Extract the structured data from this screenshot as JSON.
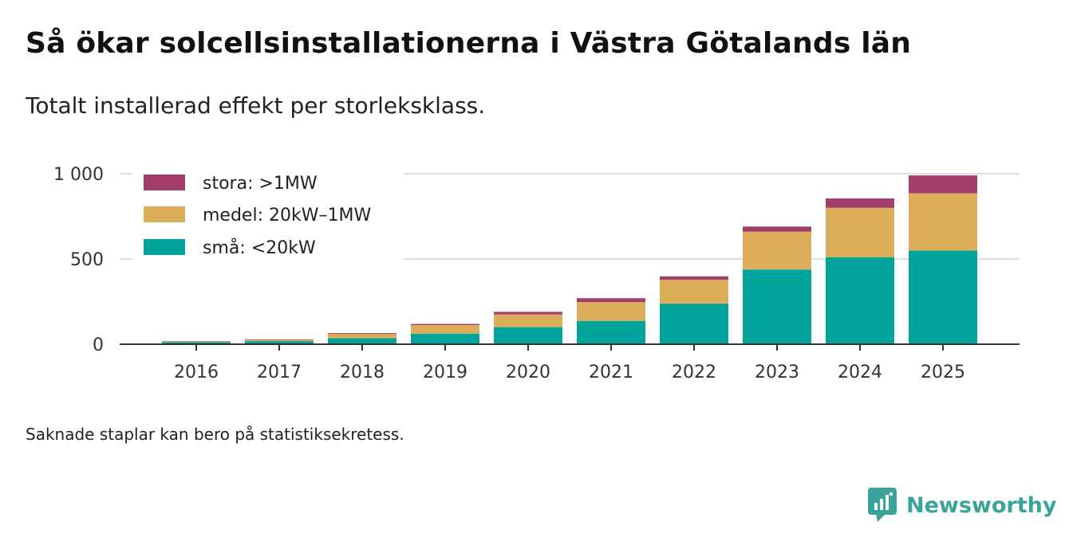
{
  "title": "Så ökar solcellsinstallationerna i Västra Götalands län",
  "subtitle": "Totalt installerad effekt per storleksklass.",
  "note": "Saknade staplar kan bero på statistiksekretess.",
  "brand": {
    "name": "Newsworthy",
    "color": "#3aa39a",
    "icon": "newsworthy-logo-icon"
  },
  "chart_data": {
    "type": "bar",
    "stacked": true,
    "categories": [
      "2016",
      "2017",
      "2018",
      "2019",
      "2020",
      "2021",
      "2022",
      "2023",
      "2024",
      "2025"
    ],
    "series": [
      {
        "name": "små: <20kW",
        "color": "#00a49a",
        "values": [
          12,
          18,
          35,
          62,
          100,
          137,
          238,
          438,
          510,
          550
        ]
      },
      {
        "name": "medel: 20kW–1MW",
        "color": "#dcae5a",
        "values": [
          5,
          8,
          25,
          50,
          75,
          110,
          140,
          222,
          290,
          335
        ]
      },
      {
        "name": "stora: >1MW",
        "color": "#a33e6a",
        "values": [
          2,
          3,
          5,
          7,
          15,
          23,
          20,
          30,
          55,
          105
        ]
      }
    ],
    "legend_order": [
      "stora: >1MW",
      "medel: 20kW–1MW",
      "små: <20kW"
    ],
    "legend_position": "top-left",
    "ylim": [
      0,
      1000
    ],
    "yticks": [
      0,
      500,
      1000
    ],
    "ytick_labels": [
      "0",
      "500",
      "1 000"
    ],
    "grid": true,
    "xlabel": "",
    "ylabel": ""
  }
}
